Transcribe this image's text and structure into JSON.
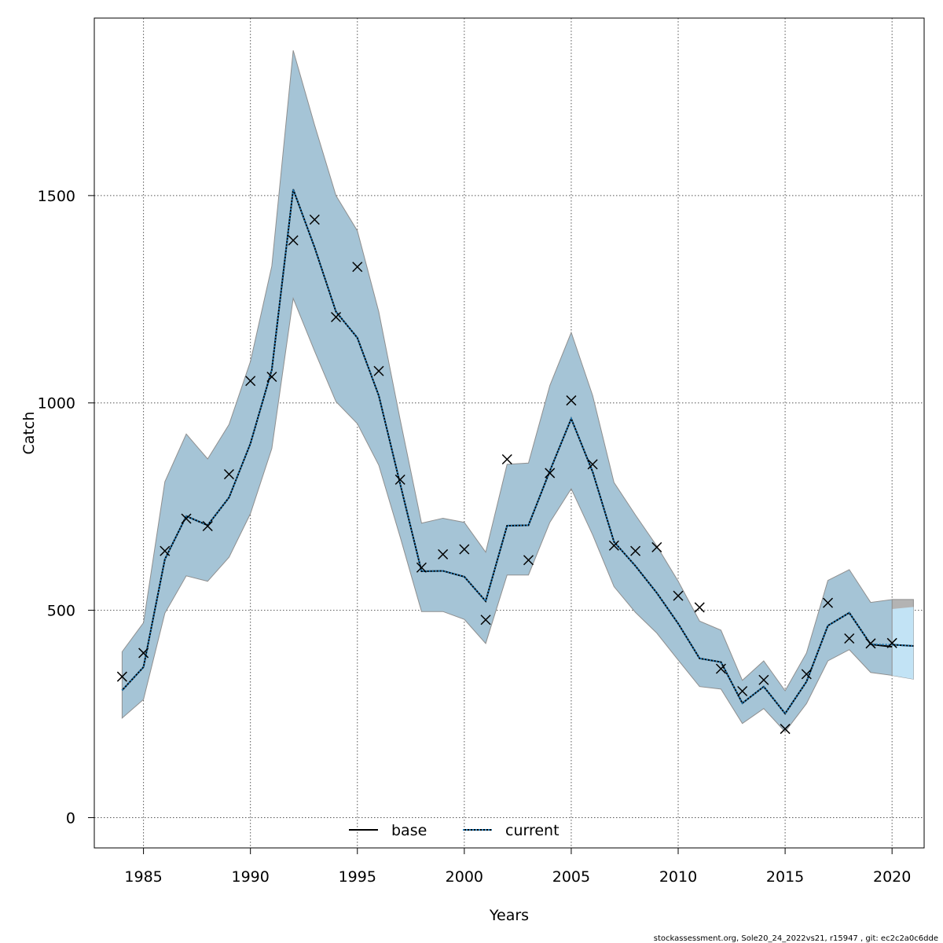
{
  "chart_data": {
    "type": "line",
    "xlabel": "Years",
    "ylabel": "Catch",
    "xlim": [
      1982.7,
      2021.5
    ],
    "ylim": [
      -73,
      1928
    ],
    "x_ticks": [
      1985,
      1990,
      1995,
      2000,
      2005,
      2010,
      2015,
      2020
    ],
    "y_ticks": [
      0,
      500,
      1000,
      1500
    ],
    "grid": true,
    "legend_position": "bottom-center",
    "colors": {
      "band_base": "#a5c4d6",
      "band_base_edge": "#8f8f8f",
      "band_base_forecast": "#b3b3b3",
      "band_current_forecast": "#c2e3f5",
      "line_base": "#000000",
      "line_current": "#1f78b4",
      "observed_marker": "#000000"
    },
    "years": [
      1984,
      1985,
      1986,
      1987,
      1988,
      1989,
      1990,
      1991,
      1992,
      1993,
      1994,
      1995,
      1996,
      1997,
      1998,
      1999,
      2000,
      2001,
      2002,
      2003,
      2004,
      2005,
      2006,
      2007,
      2008,
      2009,
      2010,
      2011,
      2012,
      2013,
      2014,
      2015,
      2016,
      2017,
      2018,
      2019,
      2020
    ],
    "series": [
      {
        "name": "base",
        "style": "solid",
        "values": [
          307,
          363,
          623,
          727,
          705,
          772,
          902,
          1080,
          1515,
          1375,
          1220,
          1157,
          1018,
          805,
          594,
          595,
          581,
          522,
          704,
          705,
          836,
          962,
          834,
          665,
          607,
          542,
          468,
          384,
          375,
          276,
          316,
          251,
          328,
          463,
          494,
          418,
          412
        ],
        "lower": [
          240,
          285,
          493,
          583,
          570,
          628,
          733,
          890,
          1252,
          1125,
          1003,
          950,
          850,
          677,
          497,
          497,
          478,
          420,
          585,
          585,
          712,
          793,
          682,
          557,
          495,
          445,
          380,
          316,
          310,
          227,
          263,
          207,
          275,
          378,
          405,
          350,
          343
        ],
        "upper": [
          400,
          470,
          810,
          925,
          865,
          948,
          1100,
          1330,
          1850,
          1670,
          1500,
          1415,
          1220,
          960,
          710,
          722,
          712,
          640,
          852,
          855,
          1042,
          1170,
          1018,
          808,
          730,
          655,
          570,
          474,
          452,
          331,
          378,
          306,
          397,
          572,
          598,
          519,
          526
        ]
      },
      {
        "name": "current",
        "style": "dotted",
        "values": [
          307,
          363,
          623,
          727,
          705,
          772,
          902,
          1080,
          1515,
          1375,
          1220,
          1157,
          1018,
          805,
          594,
          595,
          581,
          522,
          704,
          705,
          836,
          962,
          834,
          665,
          607,
          542,
          468,
          384,
          375,
          276,
          316,
          251,
          328,
          463,
          494,
          418,
          417
        ],
        "lower": [
          240,
          285,
          493,
          583,
          570,
          628,
          733,
          890,
          1252,
          1125,
          1003,
          950,
          850,
          677,
          497,
          497,
          478,
          420,
          585,
          585,
          712,
          793,
          682,
          557,
          495,
          445,
          380,
          316,
          310,
          227,
          263,
          207,
          275,
          378,
          405,
          350,
          343
        ],
        "upper": [
          400,
          470,
          810,
          925,
          865,
          948,
          1100,
          1330,
          1850,
          1670,
          1500,
          1415,
          1220,
          960,
          710,
          722,
          712,
          640,
          852,
          855,
          1042,
          1170,
          1018,
          808,
          730,
          655,
          570,
          474,
          452,
          331,
          378,
          306,
          397,
          572,
          598,
          519,
          503
        ]
      }
    ],
    "forecast": {
      "years": [
        2020,
        2021
      ],
      "current": [
        417,
        414
      ],
      "current_lower": [
        343,
        334
      ],
      "current_upper": [
        503,
        508
      ],
      "base_upper": [
        526,
        526
      ]
    },
    "observed": {
      "years": [
        1984,
        1985,
        1986,
        1987,
        1988,
        1989,
        1990,
        1991,
        1992,
        1993,
        1994,
        1995,
        1996,
        1997,
        1998,
        1999,
        2000,
        2001,
        2002,
        2003,
        2004,
        2005,
        2006,
        2007,
        2008,
        2009,
        2010,
        2011,
        2012,
        2013,
        2014,
        2015,
        2016,
        2017,
        2018,
        2019,
        2020
      ],
      "values": [
        340,
        397,
        643,
        721,
        703,
        828,
        1053,
        1063,
        1392,
        1442,
        1207,
        1328,
        1077,
        815,
        603,
        635,
        647,
        477,
        864,
        621,
        831,
        1006,
        852,
        656,
        643,
        652,
        535,
        507,
        359,
        305,
        332,
        214,
        346,
        518,
        432,
        420,
        421
      ]
    },
    "footer": "stockassessment.org, Sole20_24_2022vs21, r15947 , git: ec2c2a0c6dde"
  }
}
